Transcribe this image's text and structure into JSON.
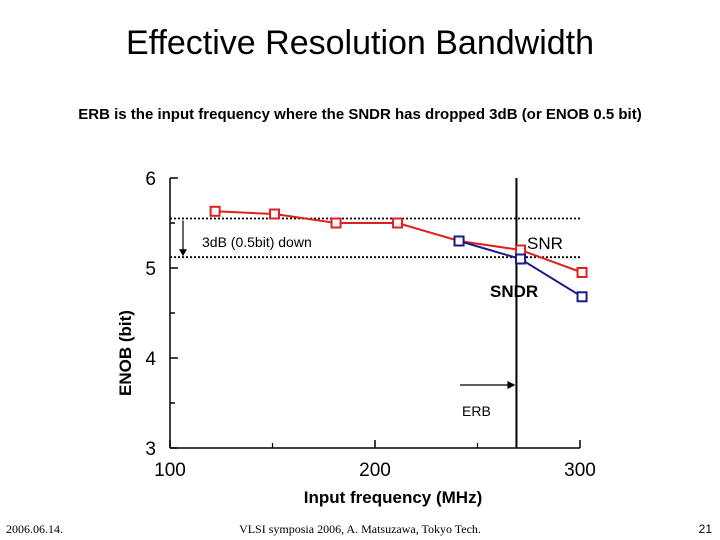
{
  "slide": {
    "title": "Effective Resolution Bandwidth",
    "subtitle": "ERB is the input frequency where the SNDR has dropped 3dB (or ENOB 0.5 bit)",
    "footer_date": "2006.06.14.",
    "footer_source": "VLSI symposia 2006,  A. Matsuzawa, Tokyo Tech.",
    "page_number": "21"
  },
  "chart_data": {
    "type": "line",
    "xlabel": "Input frequency (MHz)",
    "ylabel": "ENOB (bit)",
    "xlim": [
      100,
      300
    ],
    "ylim": [
      3,
      6
    ],
    "xticks": [
      "100",
      "200",
      "300"
    ],
    "yticks": [
      "6",
      "5",
      "4",
      "3"
    ],
    "series": [
      {
        "name": "SNR",
        "color": "#e02020",
        "x": [
          122,
          151,
          181,
          211,
          241,
          271,
          301
        ],
        "y": [
          5.63,
          5.6,
          5.5,
          5.5,
          5.3,
          5.2,
          4.95
        ]
      },
      {
        "name": "SNDR",
        "color": "#1a1a8c",
        "x": [
          241,
          271,
          301
        ],
        "y": [
          5.3,
          5.1,
          4.68
        ]
      }
    ],
    "annotations": {
      "drop_label": "3dB (0.5bit) down",
      "erb_label": "ERB",
      "erb_x": 269,
      "top_ref_y": 5.55,
      "bottom_ref_y": 5.12
    }
  }
}
